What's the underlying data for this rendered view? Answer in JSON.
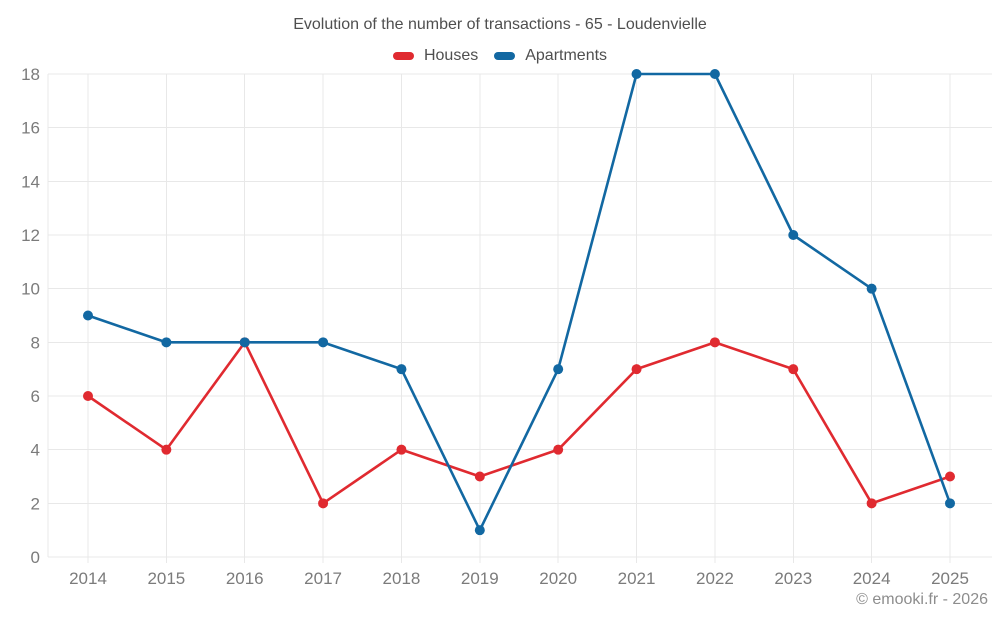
{
  "title": "Evolution of the number of transactions - 65 - Loudenvielle",
  "footer": {
    "credit": "© emooki.fr - 2026"
  },
  "colors": {
    "houses": "#e02a30",
    "apartments": "#1268a2",
    "grid": "#e8e8e8",
    "axis_text": "#7b7b7b",
    "title_text": "#4f4f4f",
    "footer_text": "#8d8d8d",
    "background": "#ffffff"
  },
  "legend": {
    "items": [
      {
        "label": "Houses",
        "color": "#e02a30"
      },
      {
        "label": "Apartments",
        "color": "#1268a2"
      }
    ]
  },
  "chart_data": {
    "type": "line",
    "title": "Evolution of the number of transactions - 65 - Loudenvielle",
    "categories": [
      "2014",
      "2015",
      "2016",
      "2017",
      "2018",
      "2019",
      "2020",
      "2021",
      "2022",
      "2023",
      "2024",
      "2025"
    ],
    "x": [
      2014,
      2015,
      2016,
      2017,
      2018,
      2019,
      2020,
      2021,
      2022,
      2023,
      2024,
      2025
    ],
    "series": [
      {
        "name": "Houses",
        "color": "#e02a30",
        "values": [
          6,
          4,
          8,
          2,
          4,
          3,
          4,
          7,
          8,
          7,
          2,
          3
        ]
      },
      {
        "name": "Apartments",
        "color": "#1268a2",
        "values": [
          9,
          8,
          8,
          8,
          7,
          1,
          7,
          18,
          18,
          12,
          10,
          2
        ]
      }
    ],
    "xlabel": "",
    "ylabel": "",
    "ylim": [
      0,
      18
    ],
    "yticks": [
      0,
      2,
      4,
      6,
      8,
      10,
      12,
      14,
      16,
      18
    ],
    "grid": true,
    "legend_position": "top",
    "marker": "circle"
  }
}
